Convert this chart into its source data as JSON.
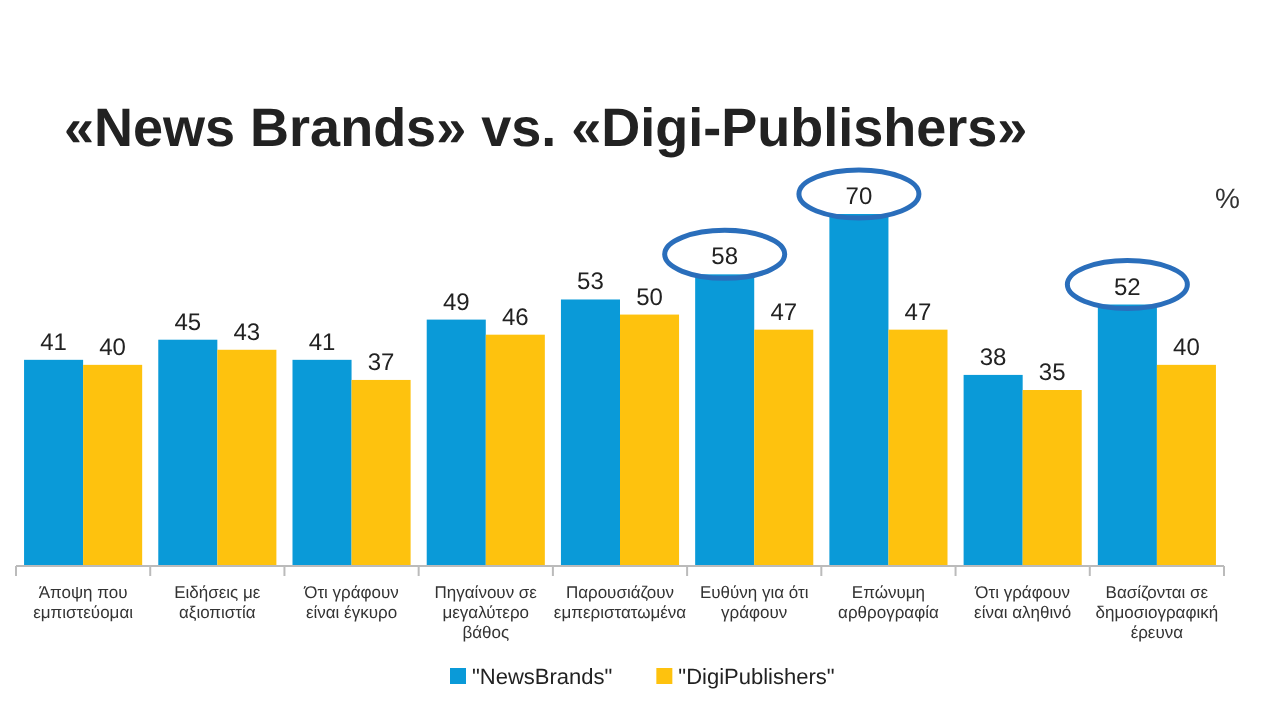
{
  "chart_data": {
    "type": "bar",
    "title": "«News Brands» vs. «Digi-Publishers»",
    "annotations": [
      "%"
    ],
    "categories": [
      "Άποψη που εμπιστεύομαι",
      "Ειδήσεις με αξιοπιστία",
      "Ότι γράφουν είναι έγκυρο",
      "Πηγαίνουν σε μεγαλύτερο βάθος",
      "Παρουσιάζουν εμπεριστατωμένα",
      "Ευθύνη για ότι γράφουν",
      "Επώνυμη αρθρογραφία",
      "Ότι γράφουν είναι αληθινό",
      "Βασίζονται σε δημοσιογραφική έρευνα"
    ],
    "series": [
      {
        "name": "\"NewsBrands\"",
        "color": "#0a9ad8",
        "values": [
          41,
          45,
          41,
          49,
          53,
          58,
          70,
          38,
          52
        ]
      },
      {
        "name": "\"DigiPublishers\"",
        "color": "#fec20e",
        "values": [
          40,
          43,
          37,
          46,
          50,
          47,
          47,
          35,
          40
        ]
      }
    ],
    "data_labels": true,
    "legend": "bottom"
  }
}
